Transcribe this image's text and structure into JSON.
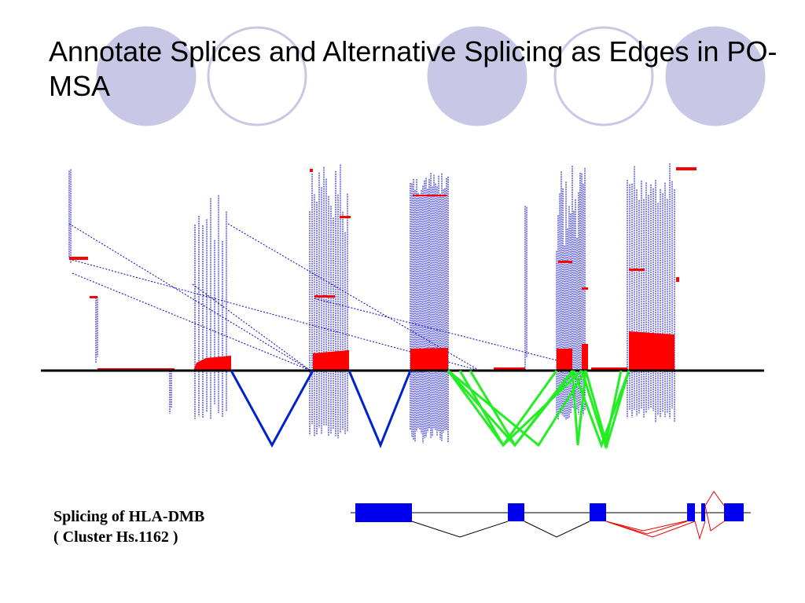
{
  "slide": {
    "title": "Annotate Splices and Alternative Splicing as Edges in PO-MSA"
  },
  "caption": {
    "line1": "Splicing of HLA-DMB",
    "line2": "( Cluster Hs.1162 )"
  },
  "colors": {
    "decor_circle_fill": "#c8c8e6",
    "decor_circle_outline": "#c8c8e6",
    "alignment_rule": "#0000cc",
    "coverage_fill": "#ff0000",
    "axis": "#000000",
    "constitutive_splice_edge": "#0022cc",
    "alternative_splice_edge": "#22ee22",
    "exon": "#0000ee",
    "intron_line": "#000000",
    "alternative_intron_line": "#ee0000"
  },
  "icons": {
    "decor": "circle-decoration"
  }
}
